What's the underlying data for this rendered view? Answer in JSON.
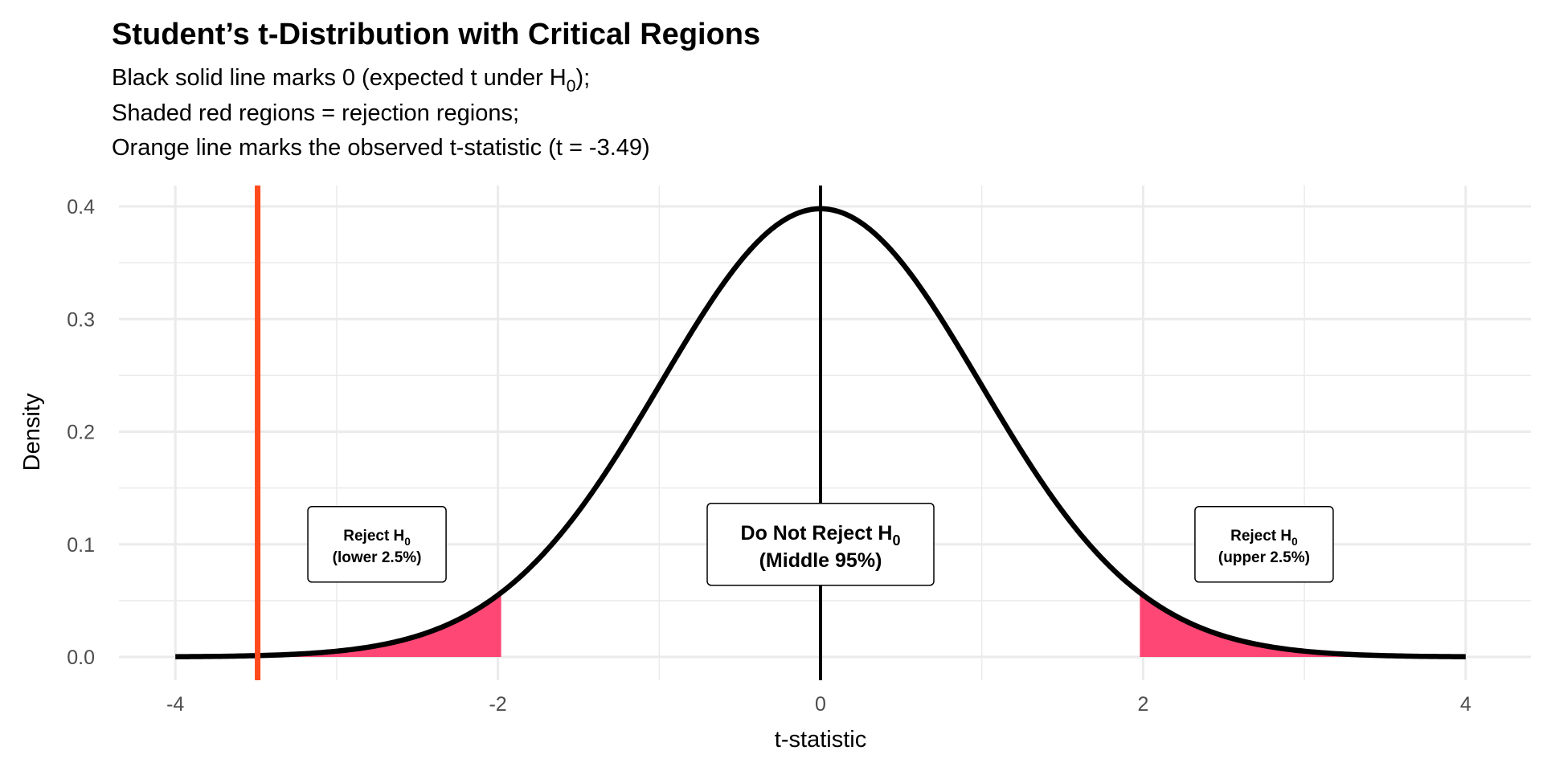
{
  "chart_data": {
    "type": "area",
    "title": "Student’s t-Distribution with Critical Regions",
    "subtitle_lines": [
      {
        "text": "Black solid line marks 0 (expected t under H",
        "sub": "0",
        "after": ");"
      },
      {
        "text": "Shaded red regions = rejection regions;",
        "sub": "",
        "after": ""
      },
      {
        "text": "Orange line marks the observed t-statistic (t = -3.49)",
        "sub": "",
        "after": ""
      }
    ],
    "xlabel": "t-statistic",
    "ylabel": "Density",
    "xlim": [
      -4,
      4
    ],
    "ylim": [
      0,
      0.4
    ],
    "x_ticks": [
      -4,
      -2,
      0,
      2,
      4
    ],
    "x_tick_labels": [
      "-4",
      "-2",
      "0",
      "2",
      "4"
    ],
    "y_ticks": [
      0,
      0.1,
      0.2,
      0.3,
      0.4
    ],
    "y_tick_labels": [
      "0.0",
      "0.1",
      "0.2",
      "0.3",
      "0.4"
    ],
    "grid": true,
    "df": 100,
    "critical_values": [
      -1.98,
      1.98
    ],
    "observed_t": -3.49,
    "reference_line": 0,
    "colors": {
      "curve": "#000000",
      "rejection_fill": "#FF3366",
      "observed_line": "#FF4A1C",
      "reference_line": "#000000",
      "grid": "#EBEBEB"
    },
    "annotations": [
      {
        "id": "lower",
        "x": -2.75,
        "y": 0.1,
        "line1": "Reject H",
        "sub": "0",
        "line2": "(lower 2.5%)"
      },
      {
        "id": "middle",
        "x": 0,
        "y": 0.1,
        "line1": "Do Not Reject H",
        "sub": "0",
        "line2": "(Middle 95%)"
      },
      {
        "id": "upper",
        "x": 2.75,
        "y": 0.1,
        "line1": "Reject H",
        "sub": "0",
        "line2": "(upper 2.5%)"
      }
    ]
  }
}
